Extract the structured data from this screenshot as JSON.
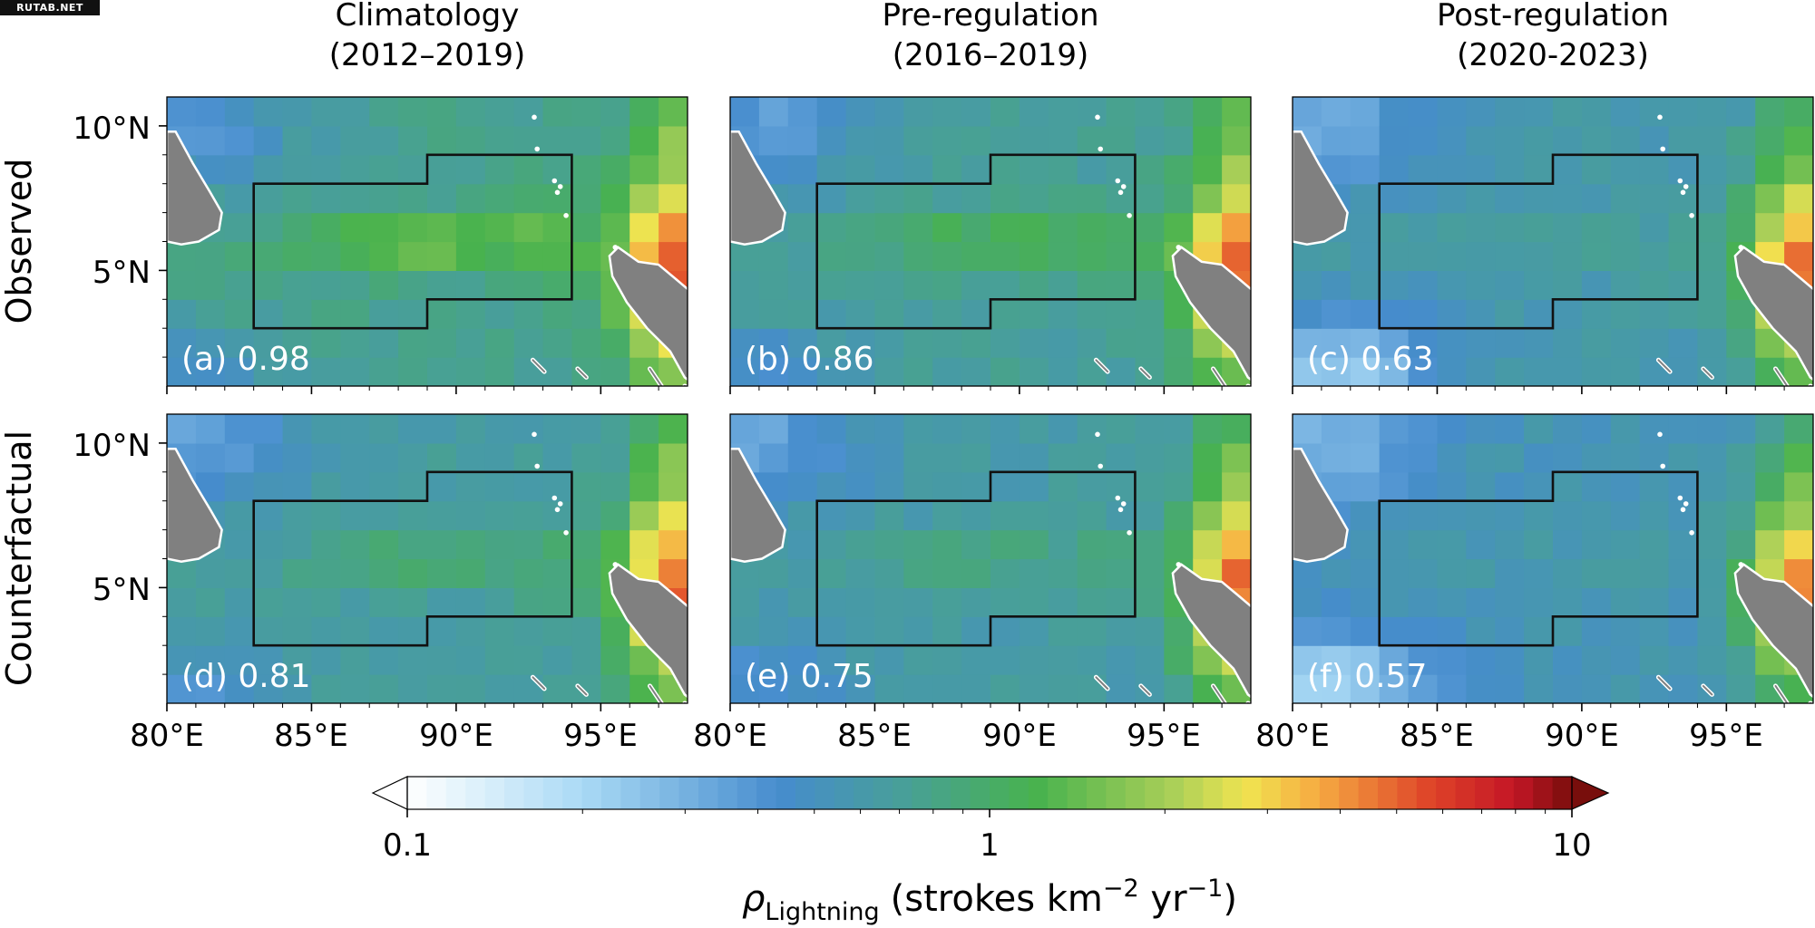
{
  "source_tag": "RUTAB.NET",
  "columns": [
    {
      "title": "Climatology",
      "period": "(2012–2019)"
    },
    {
      "title": "Pre-regulation",
      "period": "(2016–2019)"
    },
    {
      "title": "Post-regulation",
      "period": "(2020-2023)"
    }
  ],
  "rows": [
    "Observed",
    "Counterfactual"
  ],
  "colors": {
    "land": "#808080",
    "coast": "#ffffff",
    "box": "#111111",
    "panel_label": "#ffffff"
  },
  "chart_data": {
    "type": "heatmap",
    "grid": "2 rows x 3 columns of lightning density maps",
    "x_axis": {
      "range": [
        80,
        98
      ],
      "ticks": [
        80,
        85,
        90,
        95
      ],
      "tick_labels": [
        "80°E",
        "85°E",
        "90°E",
        "95°E"
      ]
    },
    "y_axis": {
      "range": [
        1,
        11
      ],
      "ticks": [
        5,
        10
      ],
      "tick_labels": [
        "5°N",
        "10°N"
      ]
    },
    "cell_size_deg": 1,
    "study_region_polygon": [
      [
        83,
        3
      ],
      [
        89,
        3
      ],
      [
        89,
        4
      ],
      [
        94,
        4
      ],
      [
        94,
        9
      ],
      [
        89,
        9
      ],
      [
        89,
        8
      ],
      [
        83,
        8
      ]
    ],
    "panels": [
      {
        "label": "(a) 0.98",
        "row": "Observed",
        "column": "Climatology",
        "value": 0.98
      },
      {
        "label": "(b) 0.86",
        "row": "Observed",
        "column": "Pre-regulation",
        "value": 0.86
      },
      {
        "label": "(c) 0.63",
        "row": "Observed",
        "column": "Post-regulation",
        "value": 0.63
      },
      {
        "label": "(d) 0.81",
        "row": "Counterfactual",
        "column": "Climatology",
        "value": 0.81
      },
      {
        "label": "(e) 0.75",
        "row": "Counterfactual",
        "column": "Pre-regulation",
        "value": 0.75
      },
      {
        "label": "(f) 0.57",
        "row": "Counterfactual",
        "column": "Post-regulation",
        "value": 0.57
      }
    ],
    "colorbar": {
      "scale": "log",
      "range": [
        0.1,
        10
      ],
      "ticks": [
        0.1,
        1,
        10
      ],
      "tick_labels": [
        "0.1",
        "1",
        "10"
      ],
      "extend": "both",
      "label_main": "ρ",
      "label_sub": "Lightning",
      "label_units_1": "(strokes km",
      "label_units_exp1": "−2",
      "label_units_2": " yr",
      "label_units_exp2": "−1",
      "label_units_3": ")"
    }
  }
}
